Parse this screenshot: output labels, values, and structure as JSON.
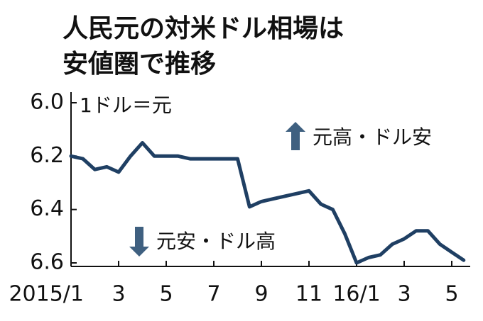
{
  "chart_data": {
    "type": "line",
    "title": [
      "人民元の対米ドル相場は",
      "安値圏で推移"
    ],
    "unit_label": "1ドル＝元",
    "annotations": [
      "元高・ドル安",
      "元安・ドル高"
    ],
    "categories": [
      "2015/1",
      null,
      null,
      null,
      "3",
      null,
      null,
      null,
      "5",
      null,
      null,
      null,
      "7",
      null,
      null,
      null,
      "9",
      null,
      null,
      null,
      "11",
      null,
      null,
      null,
      "16/1",
      null,
      null,
      null,
      "3",
      null,
      null,
      null,
      "5",
      null
    ],
    "values": [
      6.2,
      6.21,
      6.25,
      6.24,
      6.26,
      6.2,
      6.15,
      6.2,
      6.2,
      6.2,
      6.21,
      6.21,
      6.21,
      6.21,
      6.21,
      6.39,
      6.37,
      6.36,
      6.35,
      6.34,
      6.33,
      6.38,
      6.4,
      6.49,
      6.6,
      6.58,
      6.57,
      6.53,
      6.51,
      6.48,
      6.48,
      6.53,
      6.56,
      6.59
    ],
    "color": "#1f3f63",
    "ylim": [
      6.0,
      6.6
    ],
    "y_inverted": true,
    "yticks": [
      {
        "value": 6.0,
        "label": "6.0"
      },
      6.2,
      6.4,
      6.6
    ]
  }
}
